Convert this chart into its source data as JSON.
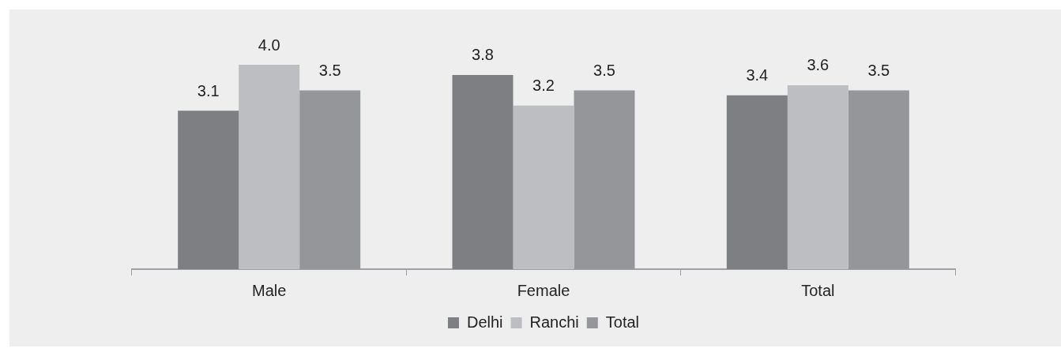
{
  "chart_data": {
    "type": "bar",
    "categories": [
      "Male",
      "Female",
      "Total"
    ],
    "series": [
      {
        "name": "Delhi",
        "color": "#7e7f83",
        "values": [
          3.1,
          3.8,
          3.4
        ],
        "value_labels": [
          "3.1",
          "3.8",
          "3.4"
        ]
      },
      {
        "name": "Ranchi",
        "color": "#bdbec2",
        "values": [
          4.0,
          3.2,
          3.6
        ],
        "value_labels": [
          "4.0",
          "3.2",
          "3.6"
        ]
      },
      {
        "name": "Total",
        "color": "#95969a",
        "values": [
          3.5,
          3.5,
          3.5
        ],
        "value_labels": [
          "3.5",
          "3.5",
          "3.5"
        ]
      }
    ],
    "legend": "bottom",
    "grid": false
  }
}
